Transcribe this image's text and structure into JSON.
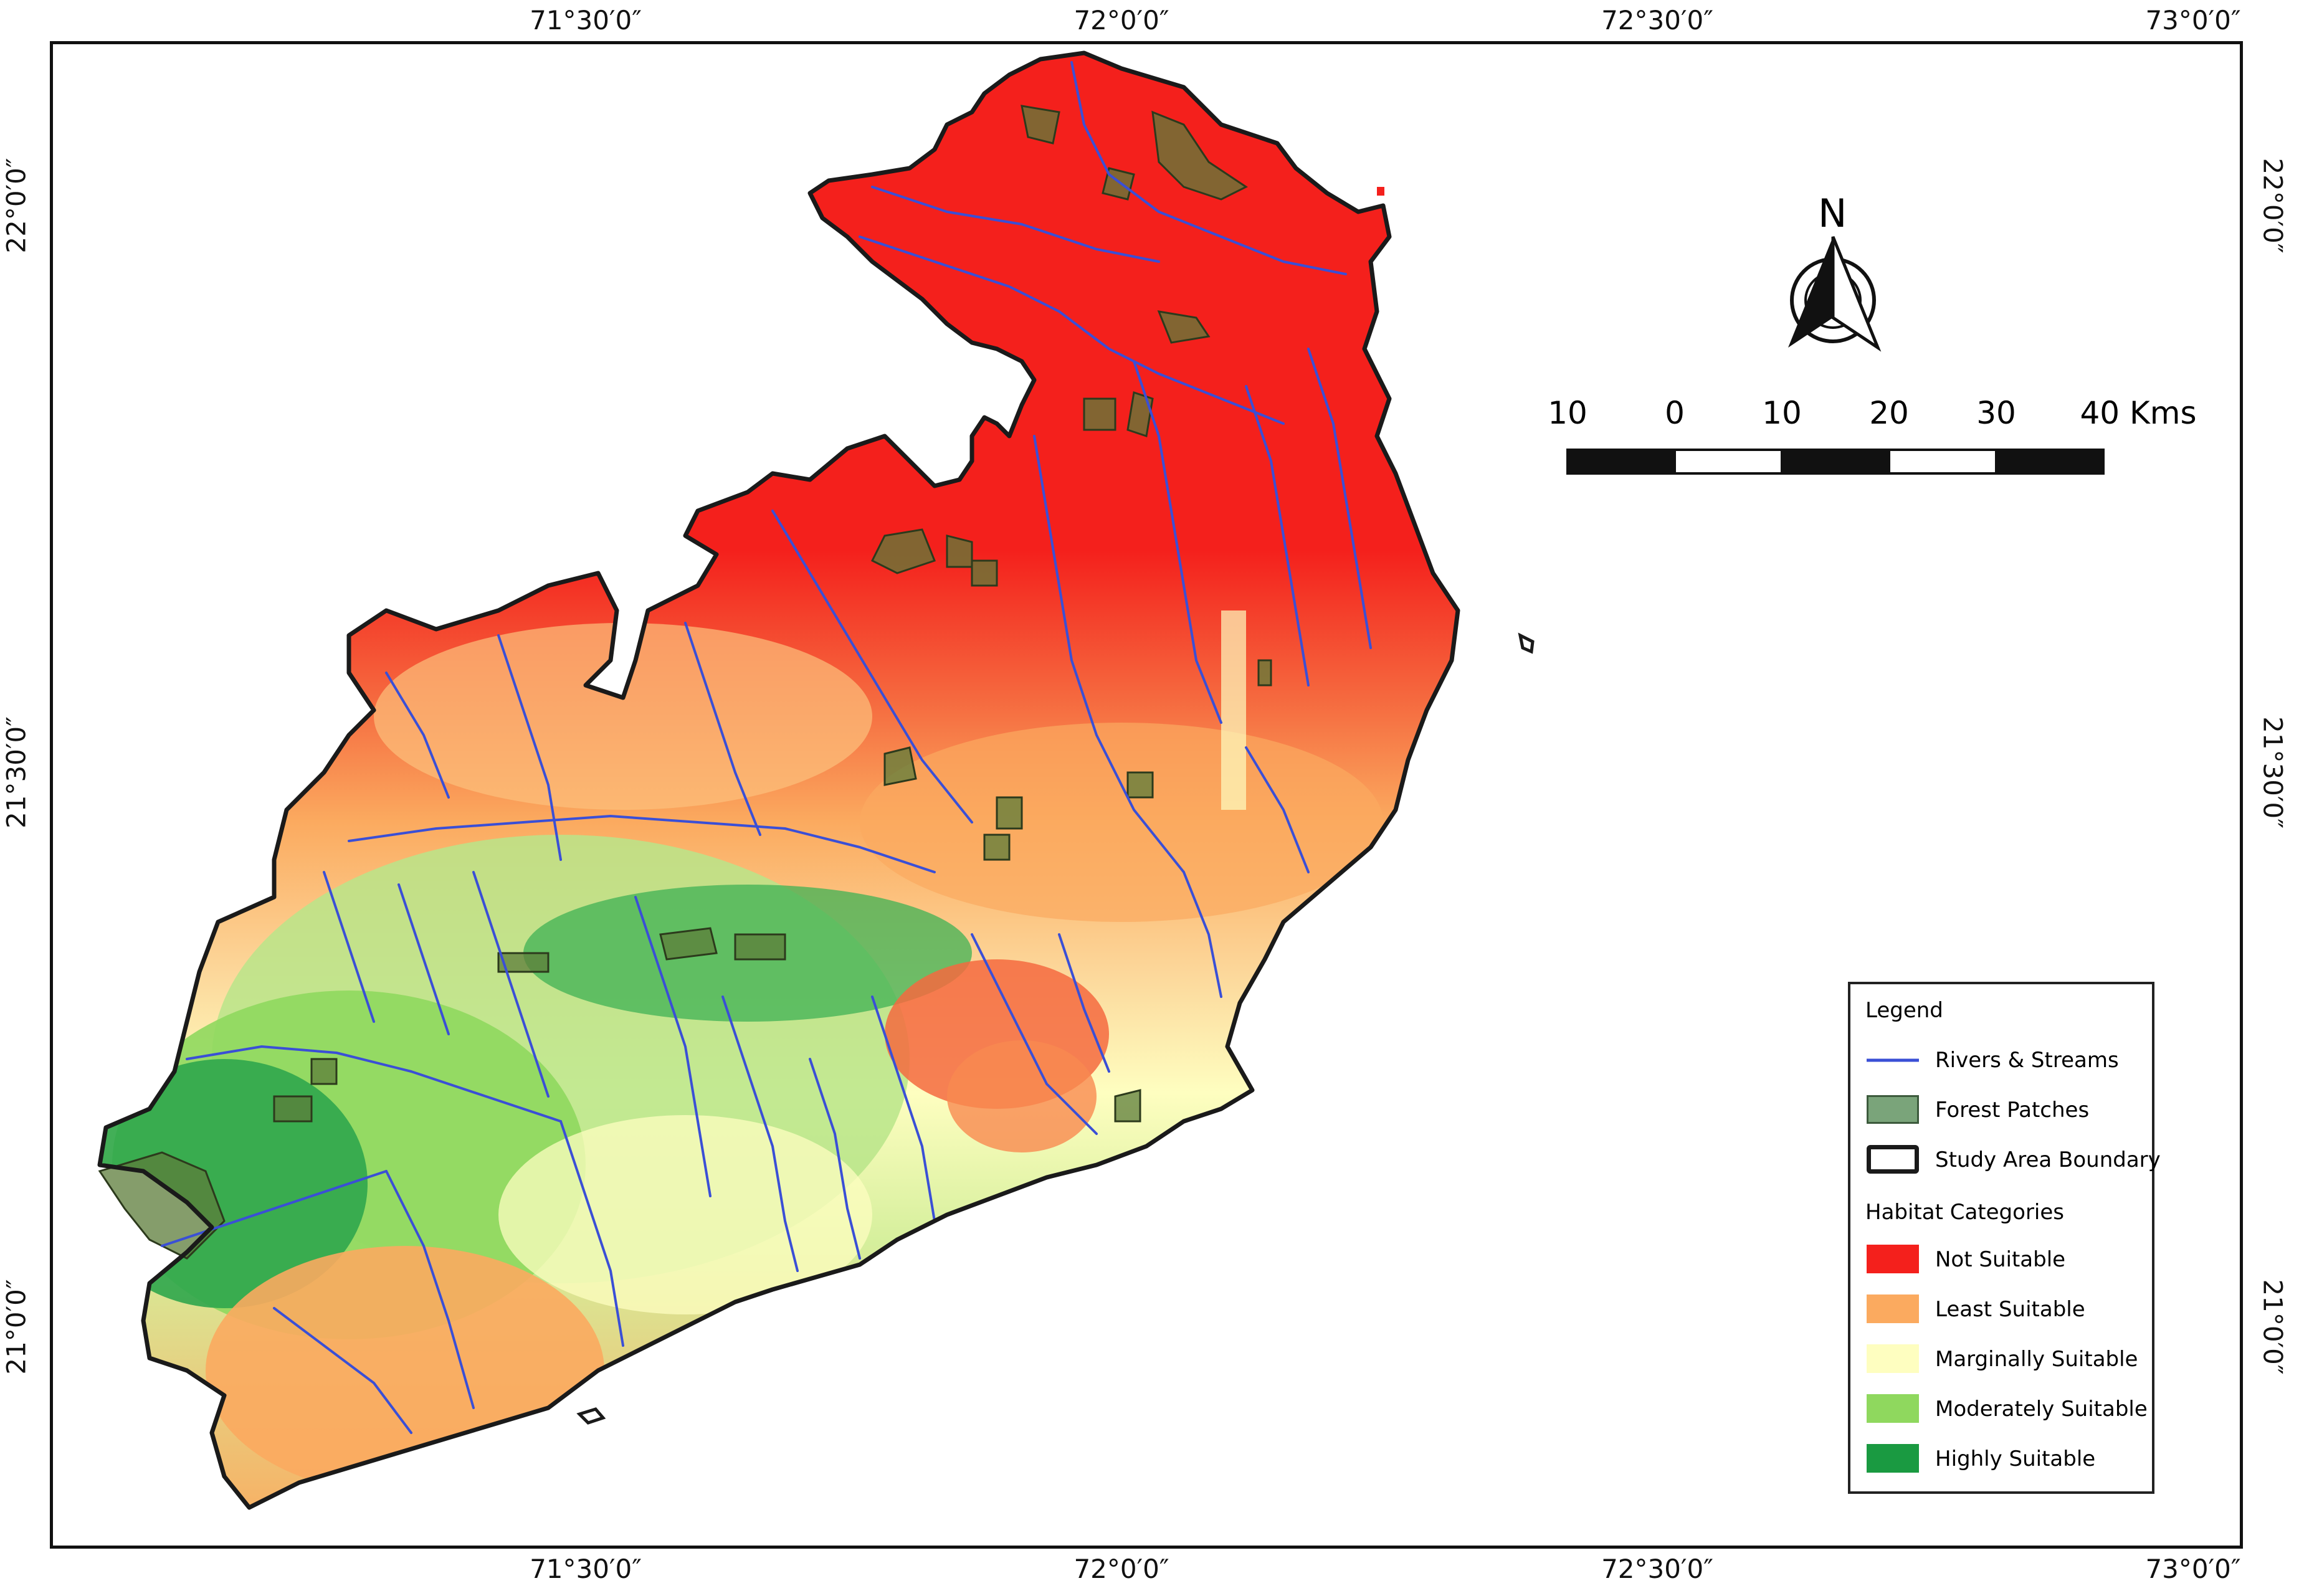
{
  "graticule": {
    "top": [
      "71°30′0″",
      "72°0′0″",
      "72°30′0″",
      "73°0′0″"
    ],
    "bottom": [
      "71°30′0″",
      "72°0′0″",
      "72°30′0″",
      "73°0′0″"
    ],
    "left": [
      "22°0′0″",
      "21°30′0″",
      "21°0′0″"
    ],
    "right": [
      "22°0′0″",
      "21°30′0″",
      "21°0′0″"
    ]
  },
  "north_arrow": {
    "label": "N"
  },
  "scale_bar": {
    "labels": [
      "10",
      "0",
      "10",
      "20",
      "30",
      "40 Kms"
    ]
  },
  "legend": {
    "title": "Legend",
    "items": [
      {
        "label": "Rivers & Streams",
        "icon": "river-line-icon",
        "color": "#3a4fd6"
      },
      {
        "label": "Forest Patches",
        "icon": "forest-patch-icon",
        "color": "#7aa47a"
      },
      {
        "label": "Study Area Boundary",
        "icon": "boundary-outline-icon",
        "color": "#1a1a1a"
      }
    ],
    "habitat_title": "Habitat Categories",
    "habitat": [
      {
        "label": "Not Suitable",
        "color": "#f4201c"
      },
      {
        "label": "Least Suitable",
        "color": "#fbaa5f"
      },
      {
        "label": "Marginally Suitable",
        "color": "#fefec0"
      },
      {
        "label": "Moderately Suitable",
        "color": "#8fd85e"
      },
      {
        "label": "Highly Suitable",
        "color": "#1a9a41"
      }
    ]
  }
}
